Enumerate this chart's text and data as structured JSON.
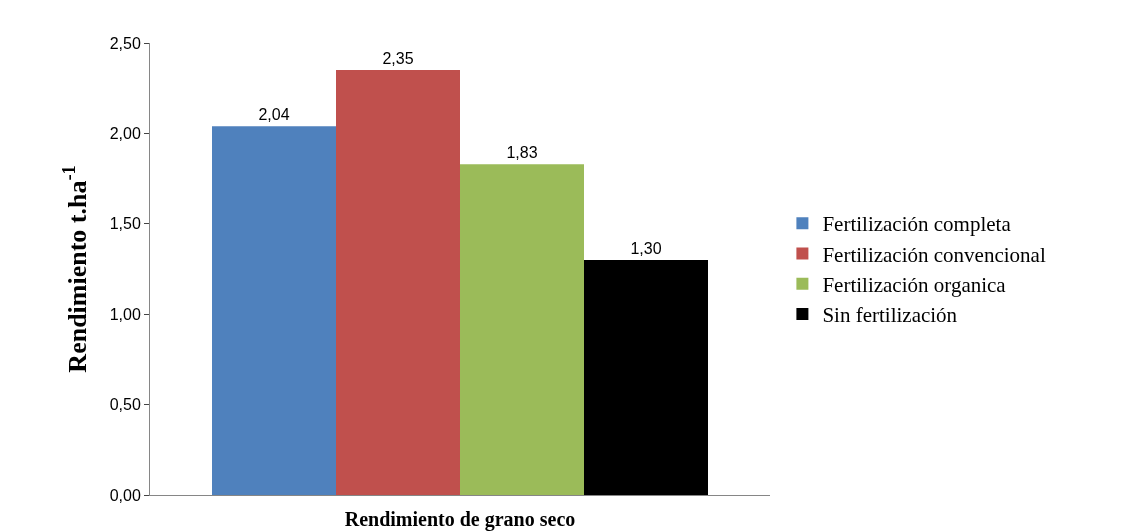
{
  "chart_data": {
    "type": "bar",
    "xlabel": "Rendimiento de grano seco",
    "ylabel": "Rendimiento t.ha$^{-1}$",
    "categories": [
      null
    ],
    "series": [
      {
        "name": "Fertilización completa",
        "color": "#4f81bd",
        "values": [
          2.04
        ],
        "value_labels": [
          "2,04"
        ]
      },
      {
        "name": "Fertilización convencional",
        "color": "#c0504d",
        "values": [
          2.35
        ],
        "value_labels": [
          "2,35"
        ]
      },
      {
        "name": "Fertilización organica",
        "color": "#9bbb59",
        "values": [
          1.83
        ],
        "value_labels": [
          "1,83"
        ]
      },
      {
        "name": "Sin fertilización",
        "color": "#000000",
        "values": [
          1.3
        ],
        "value_labels": [
          "1,30"
        ]
      }
    ],
    "ylim": [
      0,
      2.5
    ],
    "yticks": [
      {
        "value": 0,
        "label": "0,00"
      },
      {
        "value": 0.5,
        "label": "0,50"
      },
      {
        "value": 1,
        "label": "1,00"
      },
      {
        "value": 1.5,
        "label": "1,50"
      },
      {
        "value": 2,
        "label": "2,00"
      },
      {
        "value": 2.5,
        "label": "2,50"
      }
    ],
    "legend": "right"
  }
}
